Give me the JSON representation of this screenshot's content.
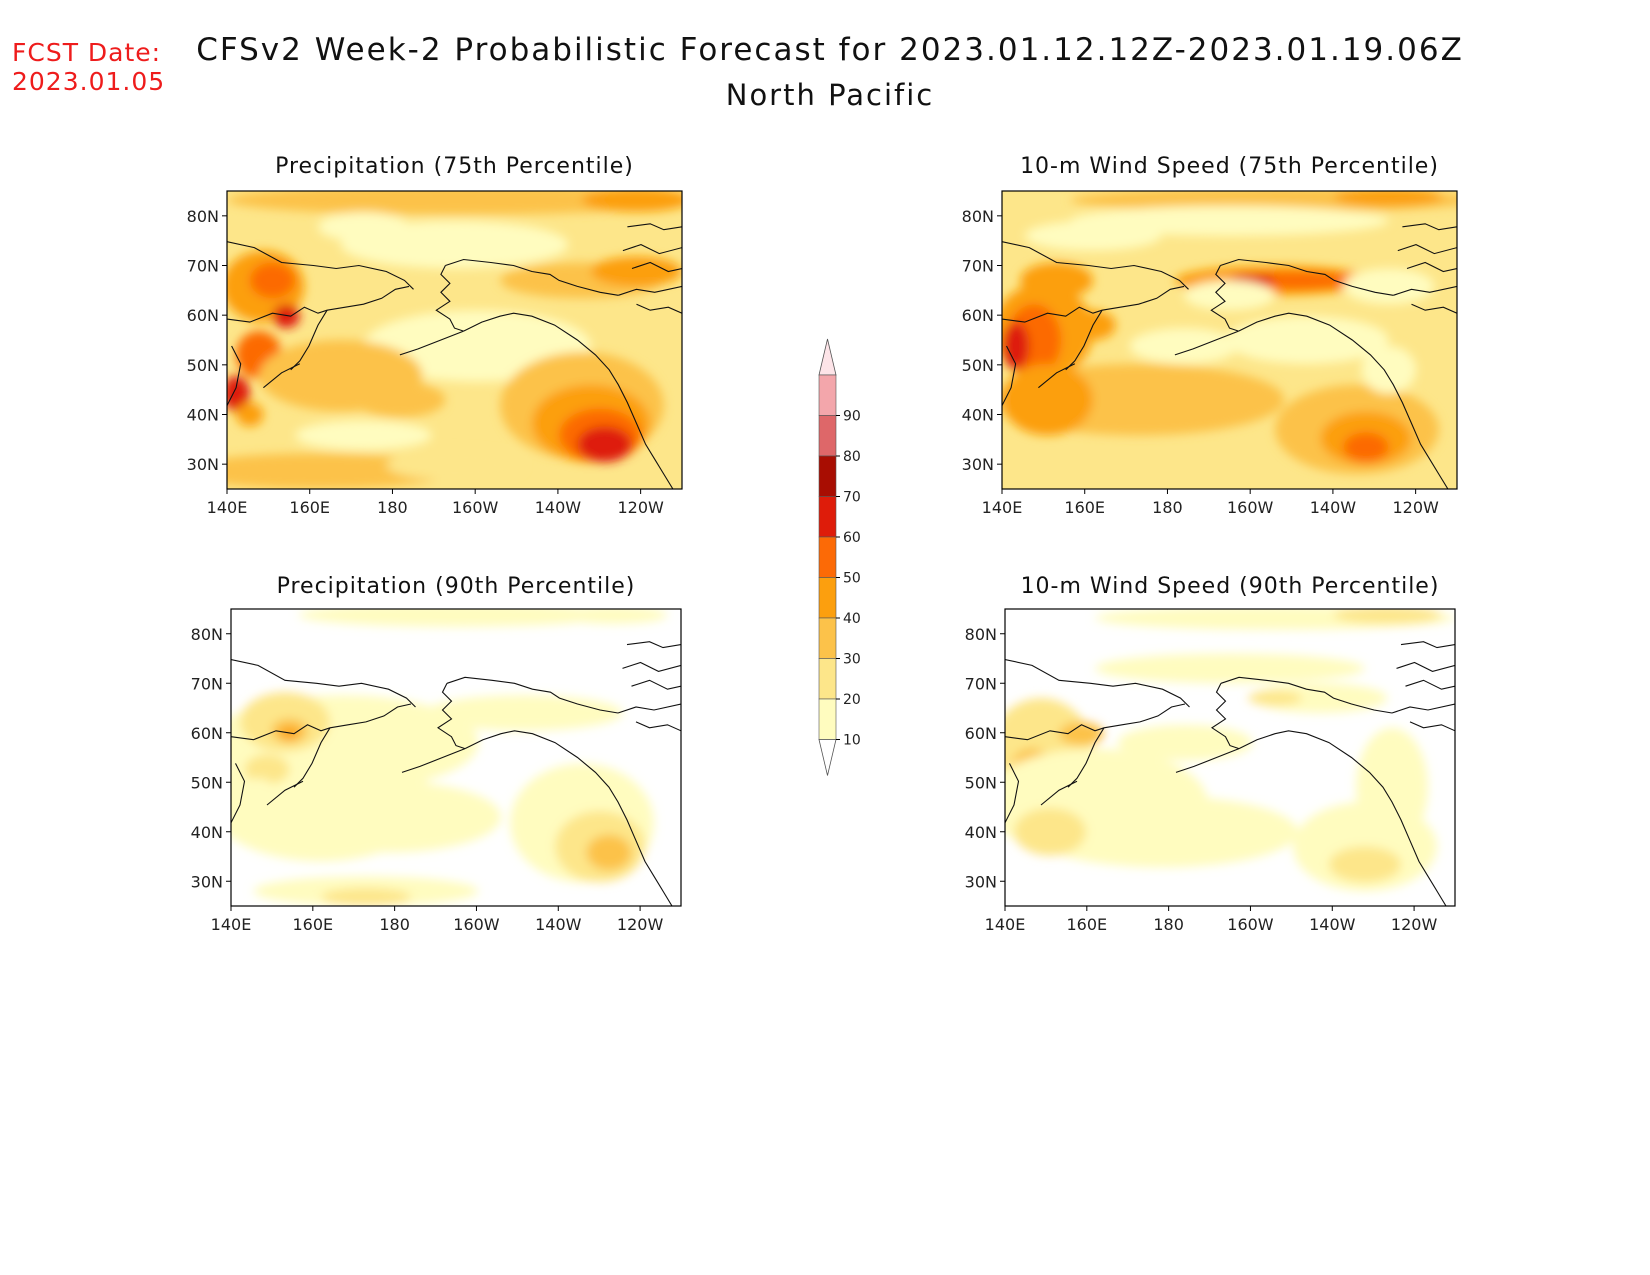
{
  "header": {
    "fcst_label": "FCST Date:",
    "fcst_date": "2023.01.05",
    "title": "CFSv2 Week-2 Probabilistic Forecast for 2023.01.12.12Z-2023.01.19.06Z",
    "subtitle": "North Pacific"
  },
  "panels": [
    {
      "id": "precip75",
      "title": "Precipitation (75th Percentile)"
    },
    {
      "id": "wind75",
      "title": "10-m Wind Speed (75th Percentile)"
    },
    {
      "id": "precip90",
      "title": "Precipitation (90th Percentile)"
    },
    {
      "id": "wind90",
      "title": "10-m Wind Speed (90th Percentile)"
    }
  ],
  "map": {
    "lon_range": [
      "140E",
      "110W"
    ],
    "lat_range": [
      "25N",
      "85N"
    ],
    "lon_ticks": [
      "140E",
      "160E",
      "180",
      "160W",
      "140W",
      "120W"
    ],
    "lat_ticks": [
      "80N",
      "70N",
      "60N",
      "50N",
      "40N",
      "30N"
    ]
  },
  "colorbar": {
    "levels": [
      "10",
      "20",
      "30",
      "40",
      "50",
      "60",
      "70",
      "80",
      "90"
    ],
    "colors": [
      "#fffcbf",
      "#fde68a",
      "#fcc24a",
      "#fc9f0e",
      "#fc6a06",
      "#de1c0a",
      "#a80d02",
      "#de6769",
      "#f3a6ab",
      "#fde4e8"
    ]
  }
}
